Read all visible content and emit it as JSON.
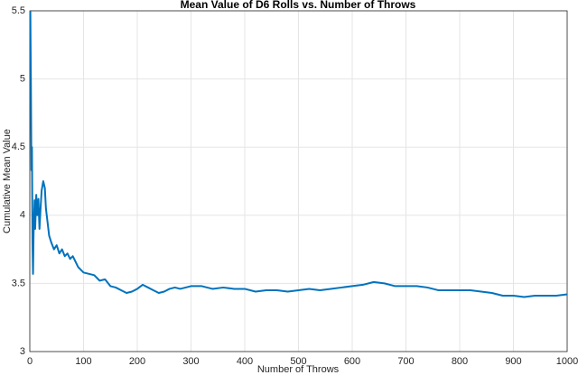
{
  "chart_data": {
    "type": "line",
    "title": "Mean Value of D6 Rolls vs. Number of Throws",
    "xlabel": "Number of Throws",
    "ylabel": "Cumulative Mean Value",
    "x": [
      1,
      2,
      3,
      4,
      5,
      6,
      7,
      8,
      9,
      10,
      12,
      14,
      16,
      18,
      20,
      22,
      25,
      28,
      30,
      33,
      36,
      40,
      45,
      50,
      55,
      60,
      65,
      70,
      75,
      80,
      85,
      90,
      95,
      100,
      110,
      120,
      130,
      140,
      150,
      160,
      170,
      180,
      190,
      200,
      210,
      220,
      230,
      240,
      250,
      260,
      270,
      280,
      290,
      300,
      320,
      340,
      360,
      380,
      400,
      420,
      440,
      460,
      480,
      500,
      520,
      540,
      560,
      580,
      600,
      620,
      640,
      660,
      680,
      700,
      720,
      740,
      760,
      780,
      800,
      820,
      840,
      860,
      880,
      900,
      920,
      940,
      960,
      980,
      1000
    ],
    "series": [
      {
        "name": "Cumulative Mean",
        "color": "#0072bd",
        "values": [
          5.5,
          5.0,
          4.33,
          4.5,
          3.8,
          3.57,
          3.86,
          4.0,
          4.11,
          3.9,
          4.15,
          4.0,
          4.12,
          3.9,
          4.05,
          4.18,
          4.25,
          4.2,
          4.05,
          3.95,
          3.85,
          3.8,
          3.75,
          3.78,
          3.72,
          3.75,
          3.7,
          3.72,
          3.68,
          3.7,
          3.66,
          3.62,
          3.6,
          3.58,
          3.57,
          3.56,
          3.52,
          3.53,
          3.48,
          3.47,
          3.45,
          3.43,
          3.44,
          3.46,
          3.49,
          3.47,
          3.45,
          3.43,
          3.44,
          3.46,
          3.47,
          3.46,
          3.47,
          3.48,
          3.48,
          3.46,
          3.47,
          3.46,
          3.46,
          3.44,
          3.45,
          3.45,
          3.44,
          3.45,
          3.46,
          3.45,
          3.46,
          3.47,
          3.48,
          3.49,
          3.51,
          3.5,
          3.48,
          3.48,
          3.48,
          3.47,
          3.45,
          3.45,
          3.45,
          3.45,
          3.44,
          3.43,
          3.41,
          3.41,
          3.4,
          3.41,
          3.41,
          3.41,
          3.42
        ]
      }
    ],
    "xlim": [
      0,
      1000
    ],
    "xticks": [
      0,
      100,
      200,
      300,
      400,
      500,
      600,
      700,
      800,
      900,
      1000
    ],
    "ylim": [
      3,
      5.5
    ],
    "yticks": [
      3,
      3.5,
      4,
      4.5,
      5,
      5.5
    ],
    "grid": true
  }
}
